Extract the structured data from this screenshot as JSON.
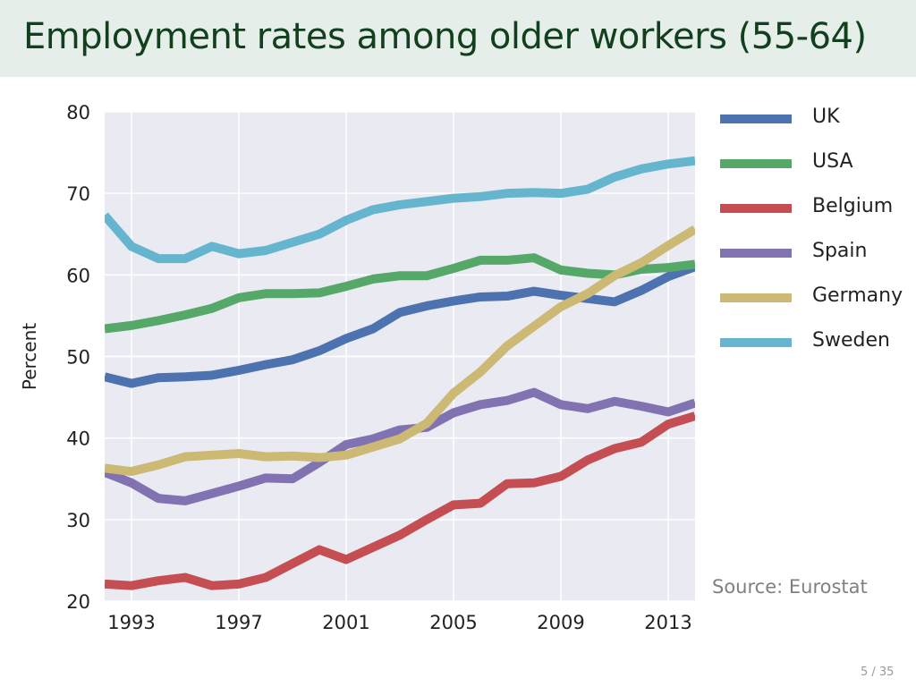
{
  "slide": {
    "title": "Employment rates among older workers (55-64)",
    "source": "Source: Eurostat",
    "page": "5 / 35"
  },
  "chart_data": {
    "type": "line",
    "title": "Employment rates among older workers (55-64)",
    "xlabel": "",
    "ylabel": "Percent",
    "xlim": [
      1992,
      2014
    ],
    "ylim": [
      20,
      80
    ],
    "xticks": [
      1993,
      1997,
      2001,
      2005,
      2009,
      2013
    ],
    "yticks": [
      20,
      30,
      40,
      50,
      60,
      70,
      80
    ],
    "grid": true,
    "legend": "right",
    "x": [
      1992,
      1993,
      1994,
      1995,
      1996,
      1997,
      1998,
      1999,
      2000,
      2001,
      2002,
      2003,
      2004,
      2005,
      2006,
      2007,
      2008,
      2009,
      2010,
      2011,
      2012,
      2013,
      2014
    ],
    "series": [
      {
        "name": "UK",
        "color": "#4c72b0",
        "values": [
          47.5,
          46.7,
          47.4,
          47.5,
          47.7,
          48.3,
          49.0,
          49.6,
          50.7,
          52.2,
          53.4,
          55.4,
          56.2,
          56.8,
          57.3,
          57.4,
          58.0,
          57.5,
          57.1,
          56.7,
          58.1,
          59.8,
          61.0
        ]
      },
      {
        "name": "USA",
        "color": "#55a868",
        "values": [
          53.4,
          53.8,
          54.4,
          55.1,
          55.9,
          57.2,
          57.7,
          57.7,
          57.8,
          58.6,
          59.5,
          59.9,
          59.9,
          60.8,
          61.8,
          61.8,
          62.1,
          60.6,
          60.2,
          60.0,
          60.7,
          60.9,
          61.3
        ]
      },
      {
        "name": "Belgium",
        "color": "#c44e52",
        "values": [
          22.1,
          21.9,
          22.5,
          22.9,
          21.9,
          22.1,
          22.9,
          24.6,
          26.3,
          25.1,
          26.6,
          28.1,
          30.0,
          31.8,
          32.0,
          34.4,
          34.5,
          35.3,
          37.3,
          38.7,
          39.5,
          41.7,
          42.7
        ]
      },
      {
        "name": "Spain",
        "color": "#8172b2",
        "values": [
          35.8,
          34.5,
          32.6,
          32.3,
          33.2,
          34.1,
          35.1,
          35.0,
          37.0,
          39.2,
          39.9,
          41.0,
          41.3,
          43.1,
          44.1,
          44.6,
          45.6,
          44.1,
          43.6,
          44.5,
          43.9,
          43.2,
          44.3
        ]
      },
      {
        "name": "Germany",
        "color": "#ccb974",
        "values": [
          36.3,
          35.9,
          36.7,
          37.7,
          37.9,
          38.1,
          37.7,
          37.8,
          37.6,
          37.9,
          38.9,
          39.9,
          41.8,
          45.5,
          48.1,
          51.3,
          53.7,
          56.1,
          57.7,
          59.9,
          61.5,
          63.6,
          65.6
        ]
      },
      {
        "name": "Sweden",
        "color": "#64b5cd",
        "values": [
          67.3,
          63.5,
          62.0,
          62.0,
          63.5,
          62.6,
          63.0,
          64.0,
          65.0,
          66.7,
          68.0,
          68.6,
          69.0,
          69.4,
          69.6,
          70.0,
          70.1,
          70.0,
          70.5,
          72.0,
          73.0,
          73.6,
          74.0
        ]
      }
    ],
    "plot_bg": "#eaeaf2"
  }
}
